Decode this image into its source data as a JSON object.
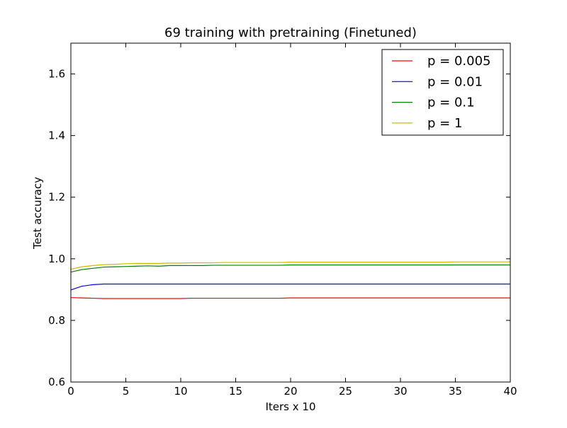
{
  "chart_data": {
    "type": "line",
    "title": "69 training with pretraining (Finetuned)",
    "xlabel": "Iters x 10",
    "ylabel": "Test accuracy",
    "xlim": [
      0,
      40
    ],
    "ylim": [
      0.6,
      1.7
    ],
    "xticks": [
      0,
      5,
      10,
      15,
      20,
      25,
      30,
      35,
      40
    ],
    "yticks": [
      0.6,
      0.8,
      1.0,
      1.2,
      1.4,
      1.6
    ],
    "xtick_labels": [
      "0",
      "5",
      "10",
      "15",
      "20",
      "25",
      "30",
      "35",
      "40"
    ],
    "ytick_labels": [
      "0.6",
      "0.8",
      "1.0",
      "1.2",
      "1.4",
      "1.6"
    ],
    "grid": false,
    "legend_position": "top-right",
    "x": [
      0,
      1,
      2,
      3,
      4,
      5,
      6,
      7,
      8,
      9,
      10,
      11,
      12,
      13,
      14,
      15,
      16,
      17,
      18,
      19,
      20,
      21,
      22,
      23,
      24,
      25,
      26,
      27,
      28,
      29,
      30,
      31,
      32,
      33,
      34,
      35,
      36,
      37,
      38,
      39,
      40
    ],
    "series": [
      {
        "name": "p = 0.005",
        "color": "#ff0000",
        "values": [
          0.874,
          0.873,
          0.872,
          0.871,
          0.871,
          0.871,
          0.871,
          0.871,
          0.871,
          0.871,
          0.871,
          0.872,
          0.872,
          0.872,
          0.872,
          0.872,
          0.872,
          0.872,
          0.872,
          0.872,
          0.873,
          0.873,
          0.873,
          0.873,
          0.873,
          0.873,
          0.873,
          0.873,
          0.873,
          0.873,
          0.873,
          0.873,
          0.873,
          0.873,
          0.873,
          0.873,
          0.873,
          0.873,
          0.873,
          0.873,
          0.873
        ]
      },
      {
        "name": "p = 0.01",
        "color": "#0000ff",
        "values": [
          0.899,
          0.911,
          0.916,
          0.918,
          0.918,
          0.918,
          0.918,
          0.918,
          0.918,
          0.918,
          0.918,
          0.918,
          0.918,
          0.918,
          0.918,
          0.918,
          0.918,
          0.918,
          0.918,
          0.918,
          0.918,
          0.918,
          0.918,
          0.918,
          0.918,
          0.918,
          0.918,
          0.918,
          0.918,
          0.918,
          0.918,
          0.918,
          0.918,
          0.918,
          0.918,
          0.918,
          0.918,
          0.918,
          0.918,
          0.918,
          0.918
        ]
      },
      {
        "name": "p = 0.1",
        "color": "#008000",
        "values": [
          0.957,
          0.965,
          0.969,
          0.973,
          0.974,
          0.975,
          0.976,
          0.977,
          0.976,
          0.978,
          0.978,
          0.978,
          0.978,
          0.979,
          0.979,
          0.979,
          0.979,
          0.979,
          0.979,
          0.979,
          0.98,
          0.98,
          0.98,
          0.98,
          0.98,
          0.98,
          0.98,
          0.98,
          0.98,
          0.98,
          0.98,
          0.98,
          0.98,
          0.98,
          0.98,
          0.98,
          0.98,
          0.98,
          0.98,
          0.98,
          0.98
        ]
      },
      {
        "name": "p = 1",
        "color": "#ccbb00",
        "values": [
          0.966,
          0.974,
          0.978,
          0.981,
          0.982,
          0.984,
          0.985,
          0.985,
          0.985,
          0.986,
          0.986,
          0.987,
          0.987,
          0.987,
          0.988,
          0.988,
          0.988,
          0.988,
          0.988,
          0.988,
          0.989,
          0.989,
          0.989,
          0.989,
          0.989,
          0.989,
          0.989,
          0.989,
          0.989,
          0.989,
          0.989,
          0.989,
          0.989,
          0.989,
          0.989,
          0.99,
          0.99,
          0.99,
          0.99,
          0.99,
          0.99
        ]
      }
    ]
  }
}
